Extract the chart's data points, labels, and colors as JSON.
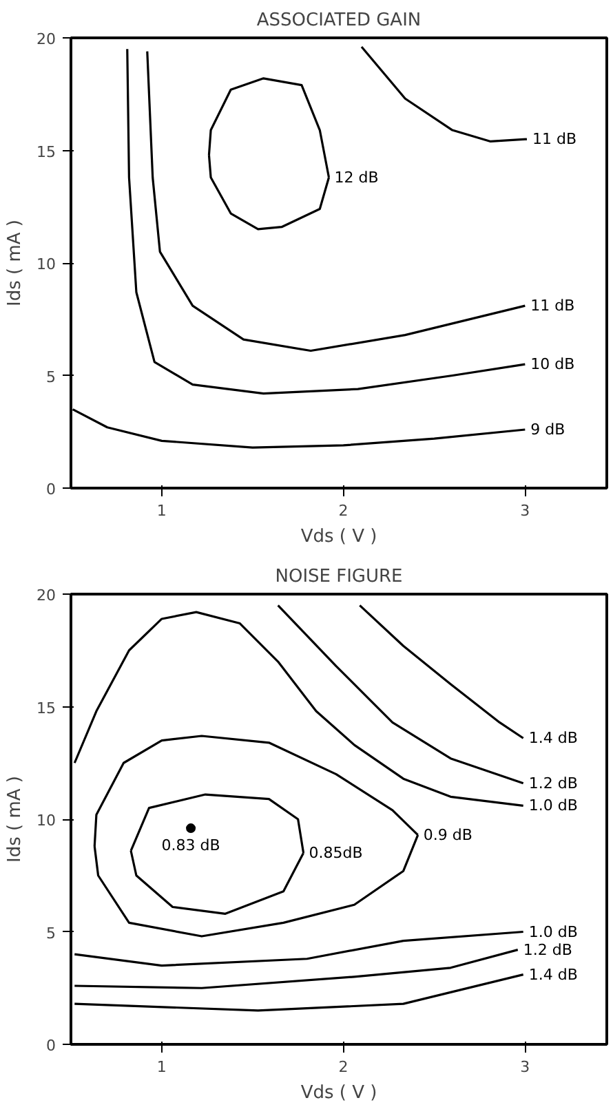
{
  "chart_data": [
    {
      "type": "line",
      "title": "ASSOCIATED GAIN",
      "xlabel": "Vds ( V )",
      "ylabel": "Ids ( mA )",
      "xlim": [
        0.5,
        3.45
      ],
      "ylim": [
        0,
        20
      ],
      "xticks": [
        1,
        2,
        3
      ],
      "yticks": [
        0,
        5,
        10,
        15,
        20
      ],
      "grid": false,
      "series": [
        {
          "name": "12 dB",
          "color": "#000000",
          "x": [
            1.26,
            1.27,
            1.38,
            1.56,
            1.77,
            1.87,
            1.92,
            null,
            1.26,
            1.27,
            1.38,
            1.53,
            1.66,
            1.87,
            1.92
          ],
          "values": [
            14.8,
            15.9,
            17.7,
            18.2,
            17.9,
            15.9,
            13.8,
            null,
            14.8,
            13.8,
            12.2,
            11.5,
            11.6,
            12.4,
            13.8
          ]
        },
        {
          "name": "11 dB",
          "color": "#000000",
          "x": [
            2.1,
            2.34,
            2.6,
            2.81,
            3.01
          ],
          "values": [
            19.6,
            17.3,
            15.9,
            15.4,
            15.5
          ]
        },
        {
          "name": "11 dB",
          "color": "#000000",
          "x": [
            0.92,
            0.95,
            0.99,
            1.17,
            1.45,
            1.82,
            2.34,
            3.0
          ],
          "values": [
            19.4,
            13.8,
            10.5,
            8.1,
            6.6,
            6.1,
            6.8,
            8.1
          ]
        },
        {
          "name": "10 dB",
          "color": "#000000",
          "x": [
            0.81,
            0.82,
            0.86,
            0.96,
            1.17,
            1.56,
            2.08,
            2.6,
            3.0
          ],
          "values": [
            19.5,
            13.8,
            8.7,
            5.6,
            4.6,
            4.2,
            4.4,
            5.0,
            5.5
          ]
        },
        {
          "name": "9 dB",
          "color": "#000000",
          "x": [
            0.51,
            0.7,
            1.0,
            1.5,
            2.0,
            2.5,
            3.0
          ],
          "values": [
            3.5,
            2.7,
            2.1,
            1.8,
            1.9,
            2.2,
            2.6
          ]
        }
      ]
    },
    {
      "type": "line",
      "title": "NOISE FIGURE",
      "xlabel": "Vds ( V )",
      "ylabel": "Ids ( mA )",
      "xlim": [
        0.5,
        3.45
      ],
      "ylim": [
        0,
        20
      ],
      "xticks": [
        1,
        2,
        3
      ],
      "yticks": [
        0,
        5,
        10,
        15,
        20
      ],
      "grid": false,
      "series": [
        {
          "name": "1.0 dB",
          "color": "#000000",
          "x": [
            0.52,
            0.64,
            0.82,
            1.0,
            1.19,
            1.43,
            1.64,
            1.85,
            2.06,
            2.33,
            2.59,
            2.99
          ],
          "values": [
            12.5,
            14.8,
            17.5,
            18.9,
            19.2,
            18.7,
            17.0,
            14.8,
            13.3,
            11.8,
            11.0,
            10.6
          ]
        },
        {
          "name": "1.2 dB",
          "color": "#000000",
          "x": [
            1.64,
            1.96,
            2.27,
            2.59,
            2.99
          ],
          "values": [
            19.5,
            16.8,
            14.3,
            12.7,
            11.6
          ]
        },
        {
          "name": "1.4 dB",
          "color": "#000000",
          "x": [
            2.09,
            2.33,
            2.59,
            2.86,
            2.99
          ],
          "values": [
            19.5,
            17.7,
            16.0,
            14.3,
            13.6
          ]
        },
        {
          "name": "0.9 dB",
          "color": "#000000",
          "x": [
            0.63,
            0.64,
            0.79,
            1.0,
            1.22,
            1.59,
            1.96,
            2.27,
            2.41,
            null,
            0.63,
            0.65,
            0.82,
            1.22,
            1.67,
            2.06,
            2.33,
            2.41
          ],
          "values": [
            8.8,
            10.2,
            12.5,
            13.5,
            13.7,
            13.4,
            12.0,
            10.4,
            9.3,
            null,
            8.8,
            7.5,
            5.4,
            4.8,
            5.4,
            6.2,
            7.7,
            9.3
          ]
        },
        {
          "name": "0.85dB",
          "color": "#000000",
          "x": [
            0.83,
            0.93,
            1.24,
            1.59,
            1.75,
            1.78,
            null,
            0.83,
            0.86,
            1.06,
            1.35,
            1.67,
            1.78
          ],
          "values": [
            8.6,
            10.5,
            11.1,
            10.9,
            10.0,
            8.5,
            null,
            8.6,
            7.5,
            6.1,
            5.8,
            6.8,
            8.5
          ]
        },
        {
          "name": "1.0 dB",
          "color": "#000000",
          "x": [
            0.52,
            1.0,
            1.8,
            2.33,
            2.99
          ],
          "values": [
            4.0,
            3.5,
            3.8,
            4.6,
            5.0
          ]
        },
        {
          "name": "1.2 dB",
          "color": "#000000",
          "x": [
            0.52,
            1.22,
            2.06,
            2.59,
            2.96
          ],
          "values": [
            2.6,
            2.5,
            3.0,
            3.4,
            4.2
          ]
        },
        {
          "name": "1.4 dB",
          "color": "#000000",
          "x": [
            0.52,
            1.53,
            2.33,
            2.99
          ],
          "values": [
            1.8,
            1.5,
            1.8,
            3.1
          ]
        },
        {
          "name": "0.83 dB",
          "type": "scatter",
          "marker": "circle",
          "color": "#000000",
          "x": [
            1.16
          ],
          "values": [
            9.6
          ]
        }
      ]
    }
  ]
}
